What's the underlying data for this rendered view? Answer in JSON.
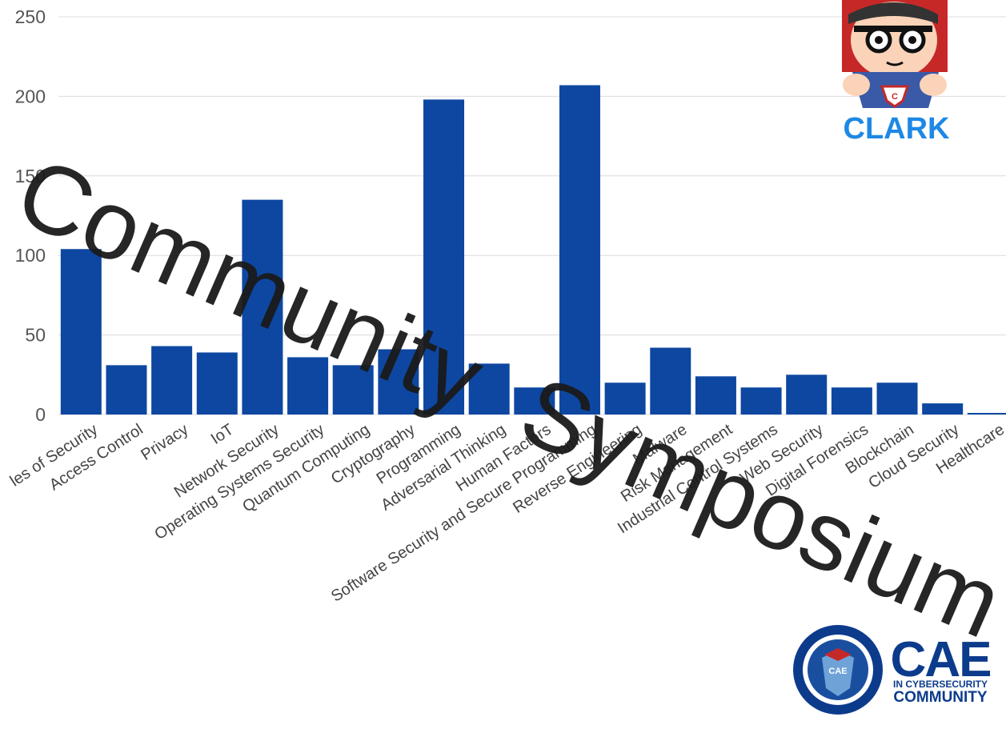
{
  "chart_data": {
    "type": "bar",
    "categories": [
      "Principles of Security",
      "Access Control",
      "Privacy",
      "IoT",
      "Network Security",
      "Operating Systems Security",
      "Quantum Computing",
      "Cryptography",
      "Programming",
      "Adversarial Thinking",
      "Human Factors",
      "Software Security and Secure Programming",
      "Reverse Engineering",
      "Malware",
      "Risk Management",
      "Industrial Control Systems",
      "Web Security",
      "Digital Forensics",
      "Blockchain",
      "Cloud Security",
      "Healthcare"
    ],
    "visible_labels": [
      "les of Security",
      "Access Control",
      "Privacy",
      "IoT",
      "Network Security",
      "Operating Systems Security",
      "Quantum Computing",
      "Cryptography",
      "Programming",
      "Adversarial Thinking",
      "Human Factors",
      "Software Security and Secure Programming",
      "Reverse Engineering",
      "Malware",
      "Risk Management",
      "Industrial Control Systems",
      "Web Security",
      "Digital Forensics",
      "Blockchain",
      "Cloud Security",
      "Healthcare"
    ],
    "values": [
      104,
      31,
      43,
      39,
      135,
      36,
      31,
      41,
      198,
      32,
      17,
      207,
      20,
      42,
      24,
      17,
      25,
      17,
      20,
      7,
      1
    ],
    "ylim": [
      0,
      250
    ],
    "yticks": [
      0,
      50,
      100,
      150,
      200,
      250
    ],
    "bar_color": "#0d47a1",
    "grid": true
  },
  "watermark": {
    "line1": "Community",
    "line2": "Symposium"
  },
  "logos": {
    "clark": {
      "text": "CLARK",
      "badge": "C",
      "color": "#1e88e5"
    },
    "cae": {
      "big": "CAE",
      "line1": "IN CYBERSECURITY",
      "line2": "COMMUNITY",
      "color": "#0d3b8c",
      "emblem": "CAE"
    }
  }
}
